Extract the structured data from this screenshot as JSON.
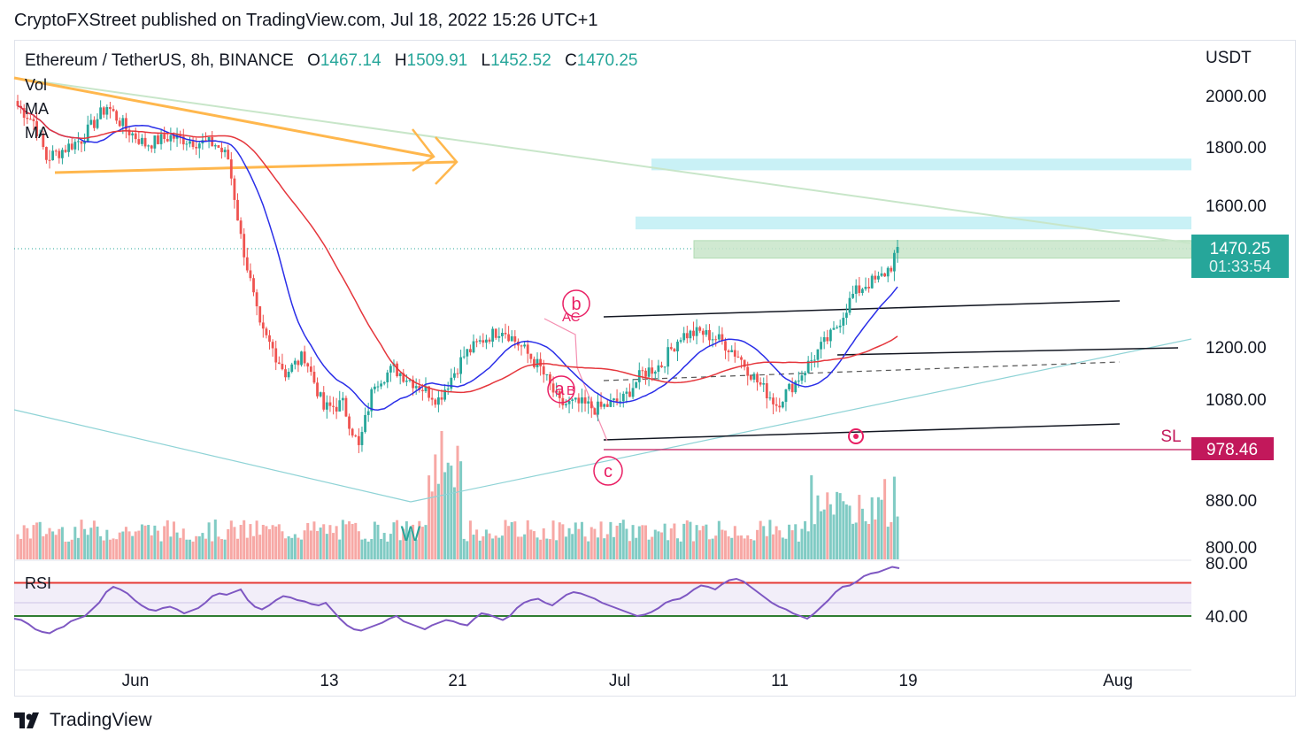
{
  "header": {
    "published": "CryptoFXStreet published on TradingView.com, Jul 18, 2022 15:26 UTC+1"
  },
  "legend": {
    "symbol": "Ethereum / TetherUS, 8h, BINANCE",
    "o_label": "O",
    "o_value": "1467.14",
    "h_label": "H",
    "h_value": "1509.91",
    "l_label": "L",
    "l_value": "1452.52",
    "c_label": "C",
    "c_value": "1470.25"
  },
  "indicators": {
    "vol": "Vol",
    "ma1": "MA",
    "ma2": "MA",
    "rsi": "RSI"
  },
  "footer": {
    "brand": "TradingView"
  },
  "colors": {
    "up": "#26a69a",
    "down": "#ef5350",
    "ma_fast": "#2a2ee8",
    "ma_slow": "#e5363c",
    "rsi": "#7e57c2",
    "accent": "#26a69a",
    "sl": "#c2185b"
  },
  "chart_data": {
    "type": "candlestick",
    "currency_label": "USDT",
    "price_ticks": [
      "2000.00",
      "1800.00",
      "1600.00",
      "1200.00",
      "1080.00",
      "880.00",
      "800.00"
    ],
    "price_tick_values": [
      2000,
      1800,
      1600,
      1200,
      1080,
      880,
      800
    ],
    "rsi_ticks": [
      "80.00",
      "40.00"
    ],
    "rsi_tick_values": [
      80,
      40
    ],
    "x_labels": [
      "Jun",
      "13",
      "21",
      "Jul",
      "11",
      "19",
      "Aug"
    ],
    "last_price": "1470.25",
    "countdown": "01:33:54",
    "stop_loss": {
      "label": "SL",
      "price": "978.46",
      "value": 978.46
    },
    "wave_labels": [
      "b",
      "A",
      "C",
      "a",
      "B",
      "c",
      "W"
    ],
    "rsi_bands": {
      "upper": 65,
      "lower": 40
    },
    "resistance_zones": [
      [
        1720,
        1760
      ],
      [
        1525,
        1565
      ]
    ],
    "highlight_zone": [
      1440,
      1490
    ],
    "rsi_series": [
      38,
      37,
      34,
      30,
      28,
      27,
      30,
      32,
      36,
      38,
      40,
      45,
      50,
      58,
      62,
      60,
      57,
      52,
      48,
      45,
      44,
      46,
      47,
      45,
      42,
      44,
      46,
      50,
      55,
      57,
      56,
      58,
      60,
      52,
      47,
      45,
      48,
      52,
      55,
      54,
      52,
      51,
      49,
      48,
      50,
      44,
      38,
      33,
      30,
      29,
      31,
      33,
      35,
      38,
      40,
      36,
      34,
      32,
      30,
      33,
      35,
      37,
      36,
      34,
      33,
      38,
      42,
      41,
      39,
      37,
      40,
      46,
      50,
      52,
      53,
      50,
      48,
      52,
      56,
      58,
      57,
      55,
      53,
      50,
      48,
      46,
      44,
      42,
      40,
      41,
      43,
      46,
      50,
      52,
      53,
      56,
      60,
      63,
      62,
      60,
      64,
      67,
      68,
      66,
      62,
      58,
      54,
      50,
      47,
      45,
      42,
      40,
      38,
      42,
      47,
      52,
      58,
      62,
      63,
      66,
      70,
      72,
      73,
      75,
      77,
      76
    ]
  }
}
